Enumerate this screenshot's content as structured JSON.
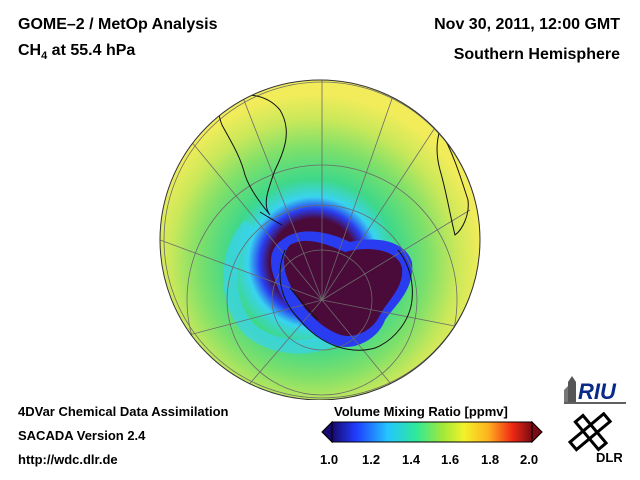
{
  "header": {
    "title": "GOME–2 / MetOp Analysis",
    "species_main": "CH",
    "species_sub": "4",
    "species_rest": " at 55.4 hPa",
    "datetime": "Nov 30, 2011, 12:00 GMT",
    "region": "Southern Hemisphere"
  },
  "footer": {
    "system": "4DVar Chemical Data Assimilation",
    "version": "SACADA Version 2.4",
    "url": "http://wdc.dlr.de"
  },
  "colorbar": {
    "title": "Volume Mixing Ratio [ppmv]",
    "ticks": [
      "1.0",
      "1.2",
      "1.4",
      "1.6",
      "1.8",
      "2.0"
    ],
    "range": [
      1.0,
      2.0
    ],
    "colors": [
      "#1a0a6b",
      "#1f3cff",
      "#24c6ff",
      "#2fe89a",
      "#9ee83a",
      "#f2f22a",
      "#ffb21e",
      "#f02a14",
      "#7a0a14"
    ]
  },
  "map": {
    "projection": "orthographic",
    "hemisphere": "south",
    "colors": {
      "outer": "#f2ec5a",
      "mid": "#9fe05a",
      "green": "#3ed88a",
      "cyan": "#39d3f0",
      "blue": "#2a3cf0",
      "core": "#4a0a3a",
      "coast": "#111111",
      "grid": "#6b6b6b"
    }
  },
  "logos": {
    "riu": "RIU",
    "dlr": "DLR"
  }
}
